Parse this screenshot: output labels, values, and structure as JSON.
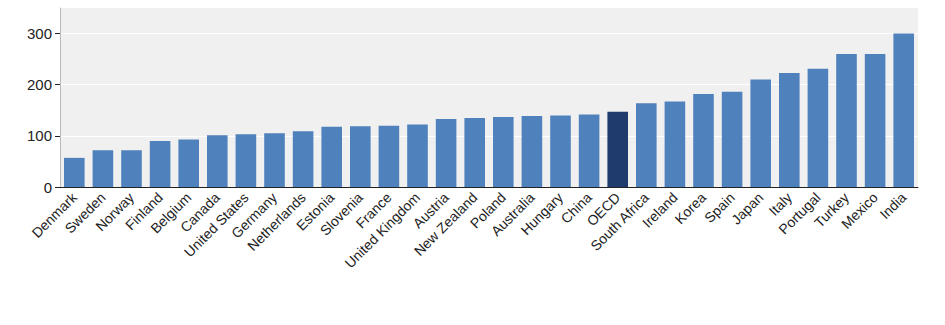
{
  "chart_data": {
    "type": "bar",
    "categories": [
      "Denmark",
      "Sweden",
      "Norway",
      "Finland",
      "Belgium",
      "Canada",
      "United States",
      "Germany",
      "Netherlands",
      "Estonia",
      "Slovenia",
      "France",
      "United Kingdom",
      "Austria",
      "New Zealand",
      "Poland",
      "Australia",
      "Hungary",
      "China",
      "OECD",
      "South Africa",
      "Ireland",
      "Korea",
      "Spain",
      "Japan",
      "Italy",
      "Portugal",
      "Turkey",
      "Mexico",
      "India"
    ],
    "values": [
      57,
      72,
      72,
      90,
      93,
      101,
      103,
      105,
      109,
      118,
      119,
      120,
      122,
      133,
      135,
      137,
      139,
      140,
      142,
      147,
      164,
      167,
      182,
      186,
      210,
      223,
      231,
      260,
      260,
      300
    ],
    "colors": [
      "#4f81bd",
      "#4f81bd",
      "#4f81bd",
      "#4f81bd",
      "#4f81bd",
      "#4f81bd",
      "#4f81bd",
      "#4f81bd",
      "#4f81bd",
      "#4f81bd",
      "#4f81bd",
      "#4f81bd",
      "#4f81bd",
      "#4f81bd",
      "#4f81bd",
      "#4f81bd",
      "#4f81bd",
      "#4f81bd",
      "#4f81bd",
      "#1f3b6e",
      "#4f81bd",
      "#4f81bd",
      "#4f81bd",
      "#4f81bd",
      "#4f81bd",
      "#4f81bd",
      "#4f81bd",
      "#4f81bd",
      "#4f81bd",
      "#4f81bd"
    ],
    "ylim": [
      0,
      350
    ],
    "yticks": [
      0,
      100,
      200,
      300
    ],
    "grid": true
  }
}
